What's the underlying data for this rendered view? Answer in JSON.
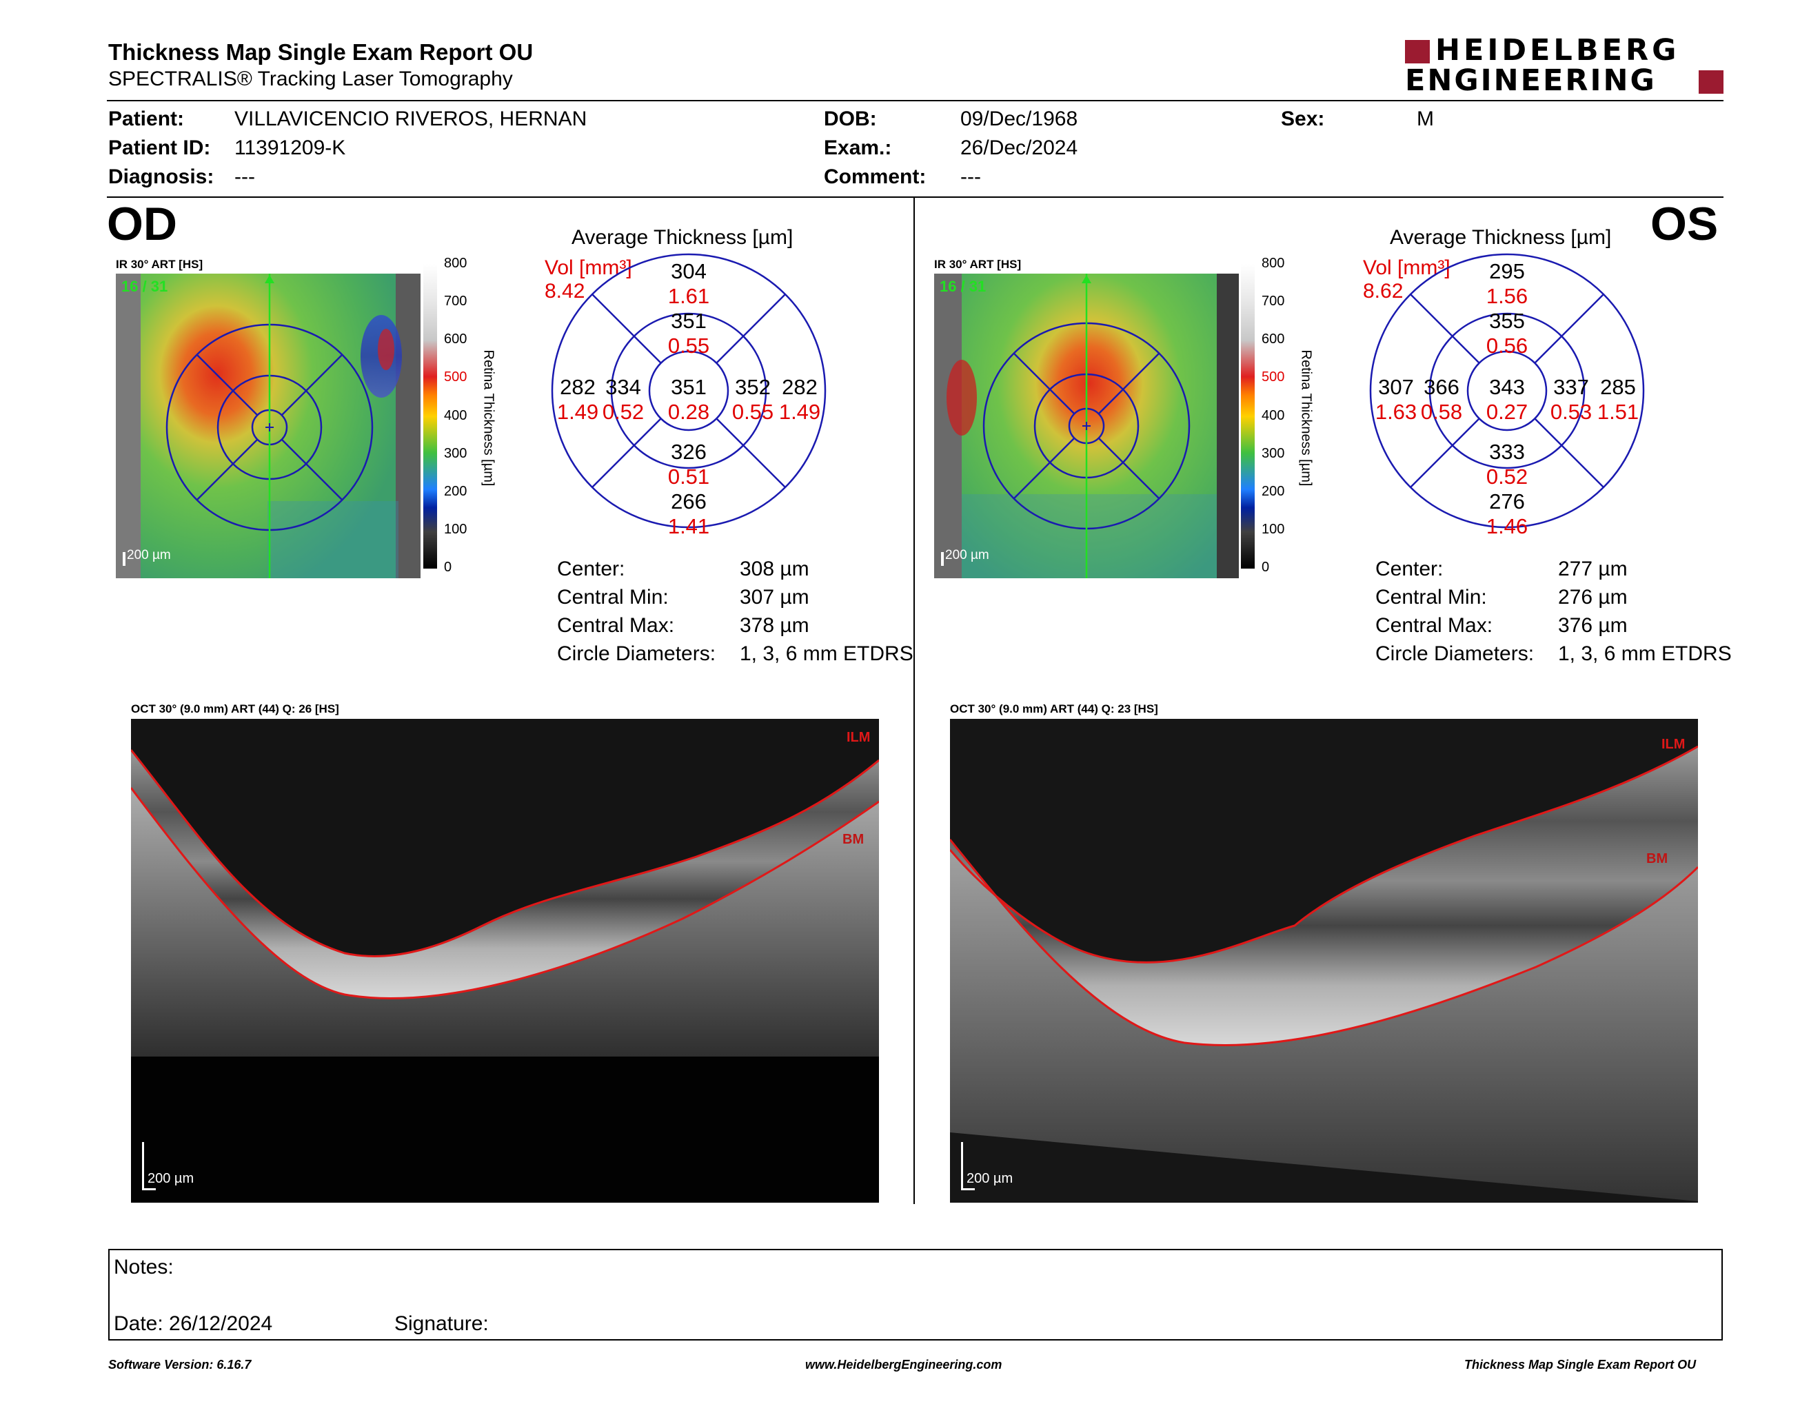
{
  "header": {
    "title": "Thickness Map Single Exam Report OU",
    "subtitle": "SPECTRALIS® Tracking Laser Tomography",
    "logo_line1": "HEIDELBERG",
    "logo_line2": "ENGINEERING",
    "brand_color": "#9b1b30"
  },
  "patient": {
    "patient_label": "Patient:",
    "patient_value": "VILLAVICENCIO RIVEROS, HERNAN",
    "id_label": "Patient ID:",
    "id_value": "11391209-K",
    "diagnosis_label": "Diagnosis:",
    "diagnosis_value": "---",
    "dob_label": "DOB:",
    "dob_value": "09/Dec/1968",
    "exam_label": "Exam.:",
    "exam_value": "26/Dec/2024",
    "comment_label": "Comment:",
    "comment_value": "---",
    "sex_label": "Sex:",
    "sex_value": "M"
  },
  "scale": {
    "ticks": [
      "800",
      "700",
      "600",
      "500",
      "400",
      "300",
      "200",
      "100",
      "0"
    ],
    "axis_label": "Retina Thickness [µm]",
    "red_tick": "500"
  },
  "od": {
    "eye": "OD",
    "ir_label": "IR 30° ART [HS]",
    "frame": "16 / 31",
    "scale_bar": "200 µm",
    "avg_title": "Average Thickness [µm]",
    "vol_label": "Vol [mm³]",
    "vol_value": "8.42",
    "sectors": {
      "outer_sup": {
        "t": "304",
        "v": "1.61"
      },
      "inner_sup": {
        "t": "351",
        "v": "0.55"
      },
      "outer_left": {
        "t": "282",
        "v": "1.49"
      },
      "inner_left": {
        "t": "334",
        "v": "0.52"
      },
      "center": {
        "t": "351",
        "v": "0.28"
      },
      "inner_right": {
        "t": "352",
        "v": "0.55"
      },
      "outer_right": {
        "t": "282",
        "v": "1.49"
      },
      "inner_inf": {
        "t": "326",
        "v": "0.51"
      },
      "outer_inf": {
        "t": "266",
        "v": "1.41"
      }
    },
    "stats": {
      "center_label": "Center:",
      "center_value": "308 µm",
      "min_label": "Central Min:",
      "min_value": "307 µm",
      "max_label": "Central Max:",
      "max_value": "378 µm",
      "diam_label": "Circle Diameters:",
      "diam_value": "1, 3, 6 mm ETDRS"
    },
    "oct_label": "OCT 30° (9.0 mm) ART (44) Q: 26 [HS]",
    "oct_scale": "200 µm",
    "ilm": "ILM",
    "bm": "BM"
  },
  "os": {
    "eye": "OS",
    "ir_label": "IR 30° ART [HS]",
    "frame": "16 / 31",
    "scale_bar": "200 µm",
    "avg_title": "Average Thickness [µm]",
    "vol_label": "Vol [mm³]",
    "vol_value": "8.62",
    "sectors": {
      "outer_sup": {
        "t": "295",
        "v": "1.56"
      },
      "inner_sup": {
        "t": "355",
        "v": "0.56"
      },
      "outer_left": {
        "t": "307",
        "v": "1.63"
      },
      "inner_left": {
        "t": "366",
        "v": "0.58"
      },
      "center": {
        "t": "343",
        "v": "0.27"
      },
      "inner_right": {
        "t": "337",
        "v": "0.53"
      },
      "outer_right": {
        "t": "285",
        "v": "1.51"
      },
      "inner_inf": {
        "t": "333",
        "v": "0.52"
      },
      "outer_inf": {
        "t": "276",
        "v": "1.46"
      }
    },
    "stats": {
      "center_label": "Center:",
      "center_value": "277 µm",
      "min_label": "Central Min:",
      "min_value": "276 µm",
      "max_label": "Central Max:",
      "max_value": "376 µm",
      "diam_label": "Circle Diameters:",
      "diam_value": "1, 3, 6 mm ETDRS"
    },
    "oct_label": "OCT 30° (9.0 mm) ART (44) Q: 23 [HS]",
    "oct_scale": "200 µm",
    "ilm": "ILM",
    "bm": "BM"
  },
  "notes": {
    "notes_label": "Notes:",
    "date_label": "Date: 26/12/2024",
    "signature_label": "Signature:"
  },
  "footer": {
    "left": "Software Version: 6.16.7",
    "center": "www.HeidelbergEngineering.com",
    "right": "Thickness Map Single Exam Report OU"
  }
}
